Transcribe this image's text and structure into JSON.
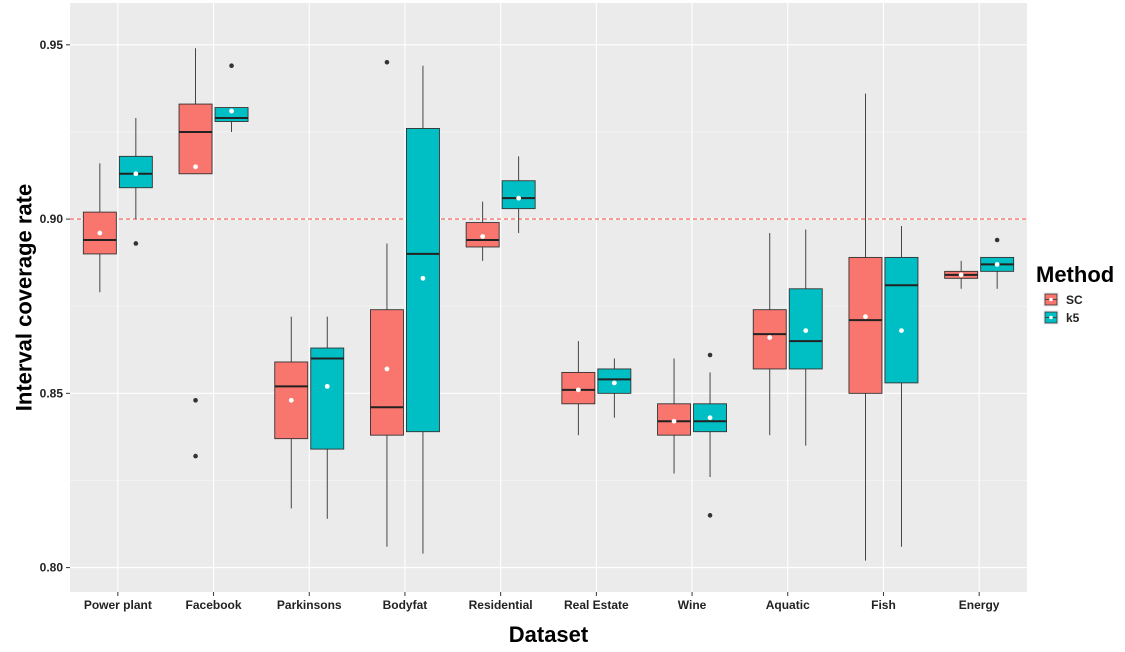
{
  "chart_data": {
    "type": "box",
    "xlabel": "Dataset",
    "ylabel": "Interval coverage rate",
    "ylim": [
      0.793,
      0.962
    ],
    "yticks": [
      0.8,
      0.85,
      0.9,
      0.95
    ],
    "reference_line": {
      "y": 0.9,
      "style": "dashed",
      "color": "#F8766D"
    },
    "categories": [
      "Power plant",
      "Facebook",
      "Parkinsons",
      "Bodyfat",
      "Residential",
      "Real Estate",
      "Wine",
      "Aquatic",
      "Fish",
      "Energy"
    ],
    "legend": {
      "title": "Method",
      "position": "right"
    },
    "grid": true,
    "panel_background": "#EBEBEB",
    "series": [
      {
        "name": "SC",
        "color": "#F8766D",
        "boxes": [
          {
            "q1": 0.89,
            "median": 0.894,
            "q3": 0.902,
            "whisker_low": 0.879,
            "whisker_high": 0.916,
            "mean": 0.896,
            "outliers": []
          },
          {
            "q1": 0.913,
            "median": 0.925,
            "q3": 0.933,
            "whisker_low": 0.913,
            "whisker_high": 0.949,
            "mean": 0.915,
            "outliers": [
              0.848,
              0.832
            ]
          },
          {
            "q1": 0.837,
            "median": 0.852,
            "q3": 0.859,
            "whisker_low": 0.817,
            "whisker_high": 0.872,
            "mean": 0.848,
            "outliers": []
          },
          {
            "q1": 0.838,
            "median": 0.846,
            "q3": 0.874,
            "whisker_low": 0.806,
            "whisker_high": 0.893,
            "mean": 0.857,
            "outliers": [
              0.945
            ]
          },
          {
            "q1": 0.892,
            "median": 0.894,
            "q3": 0.899,
            "whisker_low": 0.888,
            "whisker_high": 0.905,
            "mean": 0.895,
            "outliers": []
          },
          {
            "q1": 0.847,
            "median": 0.851,
            "q3": 0.856,
            "whisker_low": 0.838,
            "whisker_high": 0.865,
            "mean": 0.851,
            "outliers": []
          },
          {
            "q1": 0.838,
            "median": 0.842,
            "q3": 0.847,
            "whisker_low": 0.827,
            "whisker_high": 0.86,
            "mean": 0.842,
            "outliers": []
          },
          {
            "q1": 0.857,
            "median": 0.867,
            "q3": 0.874,
            "whisker_low": 0.838,
            "whisker_high": 0.896,
            "mean": 0.866,
            "outliers": []
          },
          {
            "q1": 0.85,
            "median": 0.871,
            "q3": 0.889,
            "whisker_low": 0.802,
            "whisker_high": 0.936,
            "mean": 0.872,
            "outliers": []
          },
          {
            "q1": 0.883,
            "median": 0.884,
            "q3": 0.885,
            "whisker_low": 0.88,
            "whisker_high": 0.888,
            "mean": 0.884,
            "outliers": []
          }
        ]
      },
      {
        "name": "k5",
        "color": "#00BFC4",
        "boxes": [
          {
            "q1": 0.909,
            "median": 0.913,
            "q3": 0.918,
            "whisker_low": 0.9,
            "whisker_high": 0.929,
            "mean": 0.913,
            "outliers": [
              0.893
            ]
          },
          {
            "q1": 0.928,
            "median": 0.929,
            "q3": 0.932,
            "whisker_low": 0.925,
            "whisker_high": 0.932,
            "mean": 0.931,
            "outliers": [
              0.944
            ]
          },
          {
            "q1": 0.834,
            "median": 0.86,
            "q3": 0.863,
            "whisker_low": 0.814,
            "whisker_high": 0.872,
            "mean": 0.852,
            "outliers": []
          },
          {
            "q1": 0.839,
            "median": 0.89,
            "q3": 0.926,
            "whisker_low": 0.804,
            "whisker_high": 0.944,
            "mean": 0.883,
            "outliers": []
          },
          {
            "q1": 0.903,
            "median": 0.906,
            "q3": 0.911,
            "whisker_low": 0.896,
            "whisker_high": 0.918,
            "mean": 0.906,
            "outliers": []
          },
          {
            "q1": 0.85,
            "median": 0.854,
            "q3": 0.857,
            "whisker_low": 0.843,
            "whisker_high": 0.86,
            "mean": 0.853,
            "outliers": []
          },
          {
            "q1": 0.839,
            "median": 0.842,
            "q3": 0.847,
            "whisker_low": 0.826,
            "whisker_high": 0.856,
            "mean": 0.843,
            "outliers": [
              0.861,
              0.815
            ]
          },
          {
            "q1": 0.857,
            "median": 0.865,
            "q3": 0.88,
            "whisker_low": 0.835,
            "whisker_high": 0.897,
            "mean": 0.868,
            "outliers": []
          },
          {
            "q1": 0.853,
            "median": 0.881,
            "q3": 0.889,
            "whisker_low": 0.806,
            "whisker_high": 0.898,
            "mean": 0.868,
            "outliers": []
          },
          {
            "q1": 0.885,
            "median": 0.887,
            "q3": 0.889,
            "whisker_low": 0.88,
            "whisker_high": 0.889,
            "mean": 0.887,
            "outliers": [
              0.894
            ]
          }
        ]
      }
    ]
  }
}
